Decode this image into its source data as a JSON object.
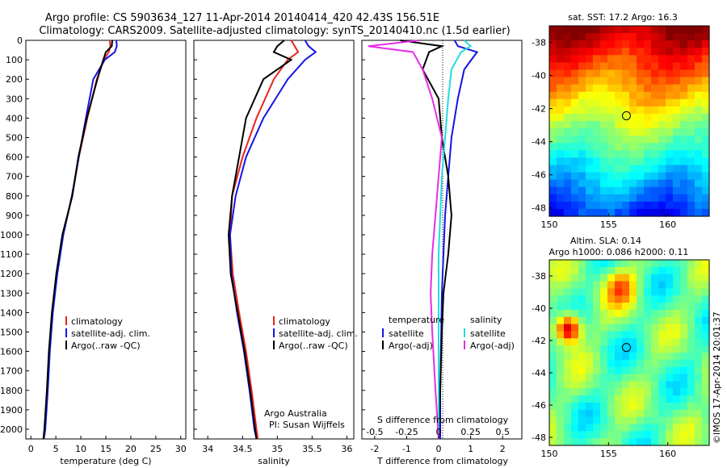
{
  "header": {
    "title_line1": "Argo profile: CS 5903634_127 11-Apr-2014 20140414_420 42.43S 156.51E",
    "title_line2": "Climatology: CARS2009. Satellite-adjusted climatology: synTS_20140410.nc (1.5d earlier)"
  },
  "colors": {
    "climatology": "#e8231e",
    "satellite": "#1414e6",
    "argo": "#000000",
    "sat_sal": "#22dddd",
    "argo_sal": "#e62ee6"
  },
  "chart_data": [
    {
      "id": "temperature",
      "type": "line",
      "xlabel": "temperature (deg C)",
      "ylabel": "",
      "xlim": [
        -1,
        31
      ],
      "ylim": [
        0,
        2050
      ],
      "y_reversed": true,
      "xticks": [
        0,
        5,
        10,
        15,
        20,
        25,
        30
      ],
      "yticks": [
        0,
        100,
        200,
        300,
        400,
        500,
        600,
        700,
        800,
        900,
        1000,
        1100,
        1200,
        1300,
        1400,
        1500,
        1600,
        1700,
        1800,
        1900,
        2000
      ],
      "legend": [
        "climatology",
        "satellite-adj. clim.",
        "Argo(..raw -QC)"
      ],
      "series": [
        {
          "name": "climatology",
          "color": "#e8231e",
          "x": [
            15.8,
            15.9,
            15.6,
            14.6,
            13.2,
            11.3,
            9.6,
            8.3,
            6.4,
            5.2,
            4.3,
            3.7,
            3.3,
            2.8,
            2.5
          ],
          "y": [
            0,
            30,
            60,
            100,
            200,
            400,
            600,
            800,
            1000,
            1200,
            1400,
            1600,
            1800,
            2000,
            2050
          ]
        },
        {
          "name": "satellite-adj. clim.",
          "color": "#1414e6",
          "x": [
            17.1,
            17.2,
            16.8,
            14.8,
            12.5,
            11.0,
            9.6,
            8.2,
            6.5,
            5.3,
            4.4,
            3.8,
            3.4,
            2.9,
            2.6
          ],
          "y": [
            0,
            30,
            60,
            100,
            200,
            400,
            600,
            800,
            1000,
            1200,
            1400,
            1600,
            1800,
            2000,
            2050
          ]
        },
        {
          "name": "Argo(..raw -QC)",
          "color": "#000000",
          "x": [
            16.3,
            16.2,
            15.0,
            14.5,
            13.3,
            11.2,
            9.5,
            8.3,
            6.3,
            5.1,
            4.2,
            3.6,
            3.2,
            2.7,
            2.5
          ],
          "y": [
            0,
            30,
            60,
            100,
            200,
            400,
            600,
            800,
            1000,
            1200,
            1400,
            1600,
            1800,
            2000,
            2050
          ]
        }
      ]
    },
    {
      "id": "salinity",
      "type": "line",
      "xlabel": "salinity",
      "ylabel": "",
      "xlim": [
        33.8,
        36.1
      ],
      "ylim": [
        0,
        2050
      ],
      "y_reversed": true,
      "xticks": [
        34,
        34.5,
        35,
        35.5,
        36
      ],
      "legend": [
        "climatology",
        "satellite-adj. clim.",
        "Argo(..raw -QC)"
      ],
      "annotations": [
        "Argo Australia",
        "PI: Susan Wijffels"
      ],
      "series": [
        {
          "name": "climatology",
          "color": "#e8231e",
          "x": [
            35.2,
            35.25,
            35.3,
            35.15,
            34.95,
            34.7,
            34.5,
            34.35,
            34.32,
            34.36,
            34.45,
            34.55,
            34.63,
            34.7,
            34.72
          ],
          "y": [
            0,
            30,
            60,
            100,
            200,
            400,
            600,
            800,
            1000,
            1200,
            1400,
            1600,
            1800,
            2000,
            2050
          ]
        },
        {
          "name": "satellite-adj. clim.",
          "color": "#1414e6",
          "x": [
            35.4,
            35.45,
            35.55,
            35.4,
            35.15,
            34.8,
            34.55,
            34.4,
            34.32,
            34.34,
            34.42,
            34.52,
            34.6,
            34.67,
            34.7
          ],
          "y": [
            0,
            30,
            60,
            100,
            200,
            400,
            600,
            800,
            1000,
            1200,
            1400,
            1600,
            1800,
            2000,
            2050
          ]
        },
        {
          "name": "Argo(..raw -QC)",
          "color": "#000000",
          "x": [
            35.1,
            35.0,
            34.95,
            35.2,
            34.8,
            34.55,
            34.45,
            34.35,
            34.3,
            34.33,
            34.43,
            34.53,
            34.61,
            34.68,
            34.7
          ],
          "y": [
            0,
            30,
            60,
            100,
            200,
            400,
            600,
            800,
            1000,
            1200,
            1400,
            1600,
            1800,
            2000,
            2050
          ]
        }
      ]
    },
    {
      "id": "difference",
      "type": "line",
      "xlabel": "T difference from climatology",
      "xlabel_top": "S difference from climatology",
      "xlim": [
        -2.4,
        2.6
      ],
      "ylim": [
        0,
        2050
      ],
      "y_reversed": true,
      "xticks": [
        -2,
        -1,
        0,
        1,
        2
      ],
      "s_ticks": [
        {
          "v": -0.5,
          "l": "-0.5"
        },
        {
          "v": -0.25,
          "l": "-0.25"
        },
        {
          "v": 0,
          "l": "0"
        },
        {
          "v": 0.25,
          "l": "0.25"
        },
        {
          "v": 0.5,
          "l": "0.5"
        }
      ],
      "legend_left_title": "temperature",
      "legend_right_title": "salinity",
      "legend_left": [
        "satellite",
        "Argo(-adj)"
      ],
      "legend_right": [
        "satellite",
        "Argo(-adj)"
      ],
      "series": [
        {
          "name": "temperature satellite",
          "color": "#1414e6",
          "x": [
            0.5,
            0.6,
            1.2,
            0.8,
            0.6,
            0.4,
            0.3,
            0.2,
            0.15,
            0.1,
            0.08,
            0.05,
            0.05
          ],
          "y": [
            0,
            30,
            60,
            150,
            300,
            500,
            700,
            900,
            1100,
            1300,
            1500,
            1800,
            2050
          ]
        },
        {
          "name": "temperature Argo(-adj)",
          "color": "#000000",
          "x": [
            -1.2,
            0.1,
            -0.3,
            -0.5,
            0.0,
            0.1,
            0.3,
            0.4,
            0.3,
            0.15,
            0.1,
            0.05,
            0.0
          ],
          "y": [
            0,
            30,
            60,
            150,
            300,
            500,
            700,
            900,
            1100,
            1300,
            1500,
            1800,
            2050
          ]
        },
        {
          "name": "salinity satellite",
          "color": "#22dddd",
          "x": [
            0.8,
            1.0,
            0.7,
            0.4,
            0.3,
            0.2,
            0.1,
            0.05,
            0.0,
            0.0,
            0.0,
            0.0,
            0.0
          ],
          "y": [
            0,
            30,
            60,
            150,
            300,
            500,
            700,
            900,
            1100,
            1300,
            1500,
            1800,
            2050
          ]
        },
        {
          "name": "salinity Argo(-adj)",
          "color": "#e62ee6",
          "x": [
            -0.6,
            -2.2,
            -0.8,
            -0.5,
            -0.2,
            0.1,
            0.0,
            -0.1,
            -0.2,
            -0.25,
            -0.2,
            -0.1,
            0.0
          ],
          "y": [
            0,
            30,
            60,
            150,
            300,
            500,
            700,
            900,
            1100,
            1300,
            1500,
            1800,
            2050
          ]
        }
      ]
    },
    {
      "id": "sst_map",
      "type": "heatmap",
      "title": "sat. SST: 17.2 Argo: 16.3",
      "xlim": [
        150,
        163.5
      ],
      "ylim": [
        -48.5,
        -37
      ],
      "xticks": [
        150,
        155,
        160
      ],
      "yticks": [
        -38,
        -40,
        -42,
        -44,
        -46,
        -48
      ],
      "marker": {
        "lon": 156.51,
        "lat": -42.43
      }
    },
    {
      "id": "sla_map",
      "type": "heatmap",
      "title_line1": "Altim. SLA: 0.14",
      "title_line2": "Argo h1000: 0.086 h2000: 0.11",
      "xlim": [
        150,
        163.5
      ],
      "ylim": [
        -48.5,
        -37
      ],
      "xticks": [
        150,
        155,
        160
      ],
      "yticks": [
        -38,
        -40,
        -42,
        -44,
        -46,
        -48
      ],
      "marker": {
        "lon": 156.51,
        "lat": -42.43
      }
    }
  ],
  "footer": {
    "side_label": "©IMOS 17-Apr-2014 20:01:37"
  }
}
